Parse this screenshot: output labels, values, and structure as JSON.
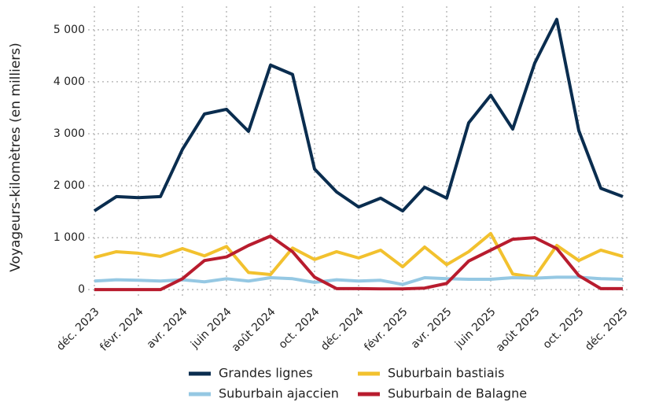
{
  "chart_data": {
    "type": "line",
    "ylabel": "Voyageurs-kilomètres (en milliers)",
    "categories": [
      "déc. 2023",
      null,
      "févr. 2024",
      null,
      "avr. 2024",
      null,
      "juin 2024",
      null,
      "août 2024",
      null,
      "oct. 2024",
      null,
      "déc. 2024",
      null,
      "févr. 2025",
      null,
      "avr. 2025",
      null,
      "juin 2025",
      null,
      "août 2025",
      null,
      "oct. 2025",
      null,
      "déc. 2025"
    ],
    "ylim": [
      -300,
      5300
    ],
    "yticks": [
      0,
      {
        "value": 1000,
        "label": "1 000"
      },
      {
        "value": 2000,
        "label": "2 000"
      },
      {
        "value": 3000,
        "label": "3 000"
      },
      {
        "value": 4000,
        "label": "4 000"
      },
      {
        "value": 5000,
        "label": "5 000"
      }
    ],
    "grid": true,
    "legend": "bottom",
    "series": [
      {
        "name": "Grandes lignes",
        "color": "#0a2d4f",
        "values": [
          1515,
          1790,
          1770,
          1790,
          2700,
          3380,
          3470,
          3045,
          4320,
          4140,
          2320,
          1880,
          1590,
          1760,
          1515,
          1970,
          1760,
          3210,
          3740,
          3090,
          4360,
          5200,
          3060,
          1950,
          1790
        ]
      },
      {
        "name": "Suburbain bastiais",
        "color": "#f2c12e",
        "values": [
          620,
          730,
          700,
          640,
          790,
          650,
          830,
          330,
          290,
          800,
          580,
          730,
          610,
          760,
          440,
          820,
          480,
          730,
          1080,
          300,
          240,
          850,
          560,
          760,
          640
        ]
      },
      {
        "name": "Suburbain ajaccien",
        "color": "#95c8e3",
        "values": [
          165,
          190,
          180,
          165,
          190,
          150,
          210,
          165,
          230,
          210,
          140,
          190,
          165,
          180,
          100,
          230,
          210,
          200,
          200,
          230,
          220,
          240,
          240,
          210,
          200
        ]
      },
      {
        "name": "Suburbain de Balagne",
        "color": "#b81c2e",
        "values": [
          0,
          0,
          0,
          0,
          210,
          560,
          630,
          850,
          1030,
          730,
          240,
          20,
          20,
          15,
          15,
          30,
          120,
          550,
          760,
          970,
          1000,
          790,
          270,
          20,
          20
        ]
      }
    ]
  }
}
